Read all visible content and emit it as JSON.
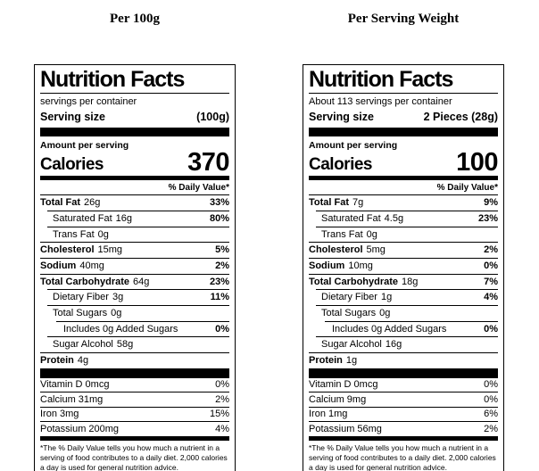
{
  "colors": {
    "text": "#000000",
    "background": "#ffffff",
    "divider": "#000000"
  },
  "panels": [
    {
      "heading": "Per 100g",
      "label": {
        "title": "Nutrition Facts",
        "servings_line": "servings per container",
        "serving_size_label": "Serving size",
        "serving_size_value": "(100g)",
        "amount_label": "Amount per serving",
        "calories_label": "Calories",
        "calories_value": "370",
        "daily_value_header": "% Daily Value*",
        "rows": [
          {
            "name": "Total Fat",
            "amount": "26g",
            "dv": "33%",
            "bold": true,
            "indent": 0
          },
          {
            "name": "Saturated Fat",
            "amount": "16g",
            "dv": "80%",
            "bold": false,
            "indent": 1
          },
          {
            "name": "Trans Fat",
            "amount": "0g",
            "dv": "",
            "bold": false,
            "indent": 1
          },
          {
            "name": "Cholesterol",
            "amount": "15mg",
            "dv": "5%",
            "bold": true,
            "indent": 0
          },
          {
            "name": "Sodium",
            "amount": "40mg",
            "dv": "2%",
            "bold": true,
            "indent": 0
          },
          {
            "name": "Total Carbohydrate",
            "amount": "64g",
            "dv": "23%",
            "bold": true,
            "indent": 0
          },
          {
            "name": "Dietary Fiber",
            "amount": "3g",
            "dv": "11%",
            "bold": false,
            "indent": 1
          },
          {
            "name": "Total Sugars",
            "amount": "0g",
            "dv": "",
            "bold": false,
            "indent": 1
          },
          {
            "name": "Includes 0g Added Sugars",
            "amount": "",
            "dv": "0%",
            "bold": false,
            "indent": 2
          },
          {
            "name": "Sugar Alcohol",
            "amount": "58g",
            "dv": "",
            "bold": false,
            "indent": 1
          },
          {
            "name": "Protein",
            "amount": "4g",
            "dv": "",
            "bold": true,
            "indent": 0
          }
        ],
        "vitamins": [
          {
            "name": "Vitamin D 0mcg",
            "dv": "0%"
          },
          {
            "name": "Calcium 31mg",
            "dv": "2%"
          },
          {
            "name": "Iron 3mg",
            "dv": "15%"
          },
          {
            "name": "Potassium 200mg",
            "dv": "4%"
          }
        ],
        "footnote": "*The % Daily Value tells you how much a nutrient in a serving of food contributes to a daily diet. 2,000 calories a day is used for general nutrition advice."
      }
    },
    {
      "heading": "Per Serving Weight",
      "label": {
        "title": "Nutrition Facts",
        "servings_line": "About 113 servings per container",
        "serving_size_label": "Serving size",
        "serving_size_value": "2 Pieces (28g)",
        "amount_label": "Amount per serving",
        "calories_label": "Calories",
        "calories_value": "100",
        "daily_value_header": "% Daily Value*",
        "rows": [
          {
            "name": "Total Fat",
            "amount": "7g",
            "dv": "9%",
            "bold": true,
            "indent": 0
          },
          {
            "name": "Saturated Fat",
            "amount": "4.5g",
            "dv": "23%",
            "bold": false,
            "indent": 1
          },
          {
            "name": "Trans Fat",
            "amount": "0g",
            "dv": "",
            "bold": false,
            "indent": 1
          },
          {
            "name": "Cholesterol",
            "amount": "5mg",
            "dv": "2%",
            "bold": true,
            "indent": 0
          },
          {
            "name": "Sodium",
            "amount": "10mg",
            "dv": "0%",
            "bold": true,
            "indent": 0
          },
          {
            "name": "Total Carbohydrate",
            "amount": "18g",
            "dv": "7%",
            "bold": true,
            "indent": 0
          },
          {
            "name": "Dietary Fiber",
            "amount": "1g",
            "dv": "4%",
            "bold": false,
            "indent": 1
          },
          {
            "name": "Total Sugars",
            "amount": "0g",
            "dv": "",
            "bold": false,
            "indent": 1
          },
          {
            "name": "Includes 0g Added Sugars",
            "amount": "",
            "dv": "0%",
            "bold": false,
            "indent": 2
          },
          {
            "name": "Sugar Alcohol",
            "amount": "16g",
            "dv": "",
            "bold": false,
            "indent": 1
          },
          {
            "name": "Protein",
            "amount": "1g",
            "dv": "",
            "bold": true,
            "indent": 0
          }
        ],
        "vitamins": [
          {
            "name": "Vitamin D 0mcg",
            "dv": "0%"
          },
          {
            "name": "Calcium 9mg",
            "dv": "0%"
          },
          {
            "name": "Iron 1mg",
            "dv": "6%"
          },
          {
            "name": "Potassium 56mg",
            "dv": "2%"
          }
        ],
        "footnote": "*The % Daily Value tells you how much a nutrient in a serving of food contributes to a daily diet. 2,000 calories a day is used for general nutrition advice."
      }
    }
  ]
}
